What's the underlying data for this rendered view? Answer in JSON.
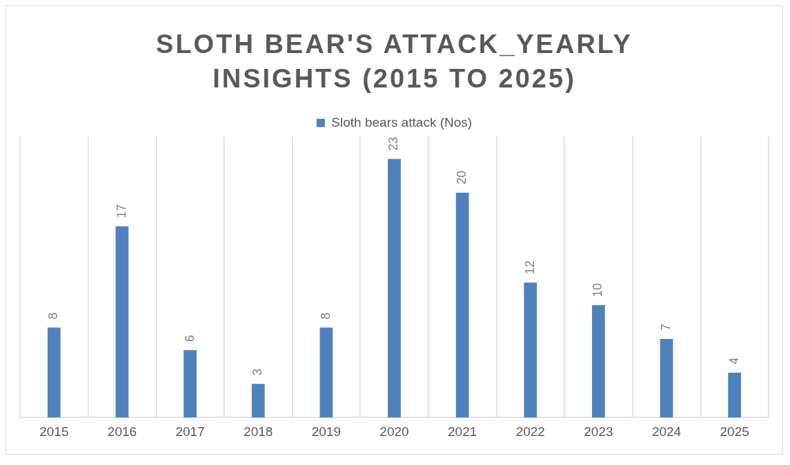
{
  "chart_data": {
    "type": "bar",
    "title": "SLOTH BEAR'S ATTACK_YEARLY INSIGHTS (2015 TO 2025)",
    "categories": [
      "2015",
      "2016",
      "2017",
      "2018",
      "2019",
      "2020",
      "2021",
      "2022",
      "2023",
      "2024",
      "2025"
    ],
    "series": [
      {
        "name": "Sloth bears attack (Nos)",
        "color": "#4f81bd",
        "values": [
          8,
          17,
          6,
          3,
          8,
          23,
          20,
          12,
          10,
          7,
          4
        ]
      }
    ],
    "ylim": [
      0,
      25
    ],
    "tick_labels": "x",
    "grid": "x",
    "legend": "top",
    "data_labels": true
  }
}
